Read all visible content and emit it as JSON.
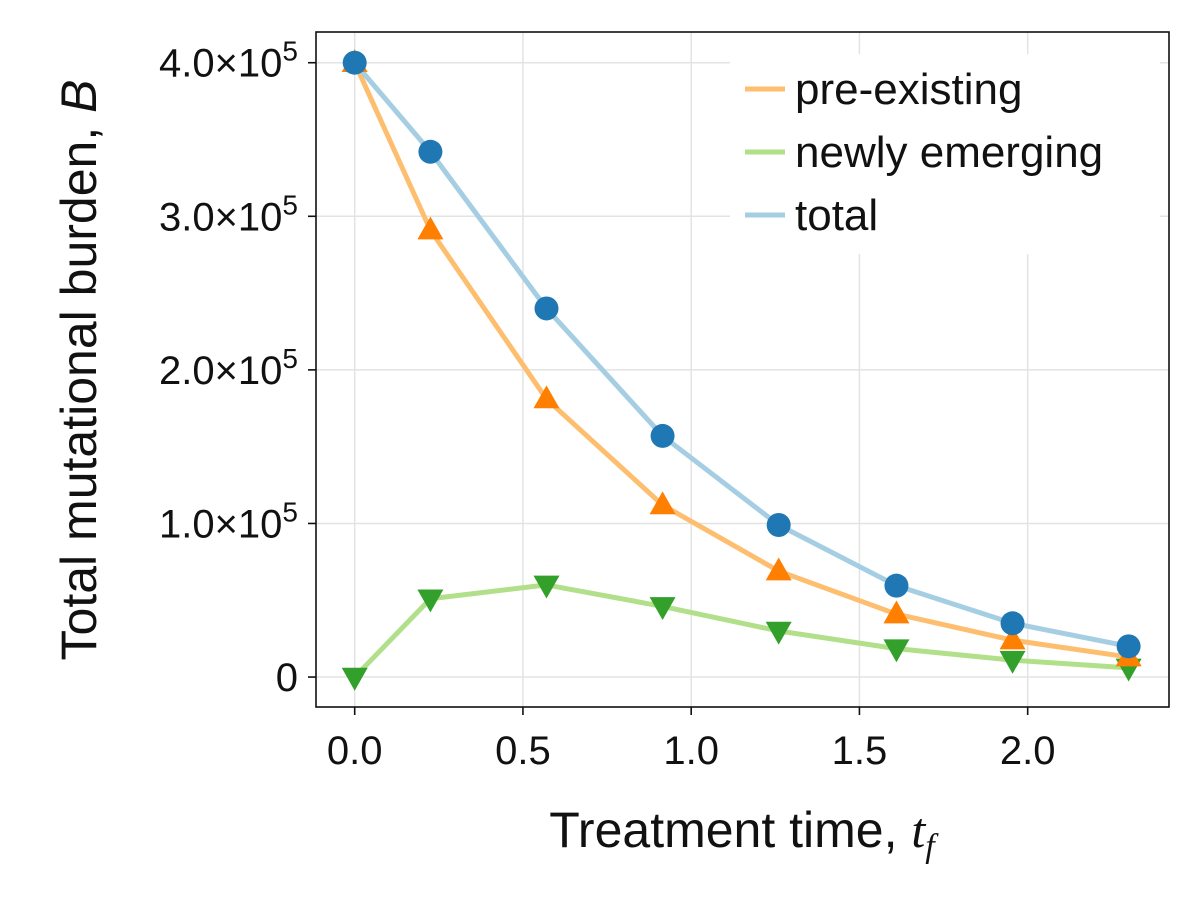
{
  "chart_data": {
    "type": "line",
    "xlabel": {
      "text": "Treatment time, ",
      "var": "t",
      "sub": "f"
    },
    "ylabel": {
      "text": "Total mutational burden, ",
      "var": "B"
    },
    "xlim": [
      -0.115,
      2.42
    ],
    "ylim": [
      -19500,
      420000
    ],
    "xticks": [
      0.0,
      0.5,
      1.0,
      1.5,
      2.0
    ],
    "xtick_labels": [
      "0.0",
      "0.5",
      "1.0",
      "1.5",
      "2.0"
    ],
    "yticks": [
      0,
      100000,
      200000,
      300000,
      400000
    ],
    "ytick_labels": [
      {
        "mant": "0",
        "exp": ""
      },
      {
        "mant": "1.0×10",
        "exp": "5"
      },
      {
        "mant": "2.0×10",
        "exp": "5"
      },
      {
        "mant": "3.0×10",
        "exp": "5"
      },
      {
        "mant": "4.0×10",
        "exp": "5"
      }
    ],
    "grid": true,
    "legend_position": "top-right",
    "x": [
      0.0,
      0.225,
      0.57,
      0.915,
      1.26,
      1.61,
      1.955,
      2.3
    ],
    "series": [
      {
        "name": "pre-existing",
        "values": [
          400000,
          291000,
          181000,
          112000,
          69000,
          41000,
          24000,
          13000
        ],
        "line_color": "#fdbf6f",
        "marker_color": "#ff7f00",
        "marker": "triangle-up"
      },
      {
        "name": "newly emerging",
        "values": [
          0,
          51000,
          60000,
          46000,
          30000,
          18500,
          11000,
          6000
        ],
        "line_color": "#b2df8a",
        "marker_color": "#33a02c",
        "marker": "triangle-down"
      },
      {
        "name": "total",
        "values": [
          400000,
          342000,
          240000,
          157000,
          99000,
          59500,
          35000,
          20000
        ],
        "line_color": "#a6cee3",
        "marker_color": "#1f78b4",
        "marker": "circle"
      }
    ]
  }
}
